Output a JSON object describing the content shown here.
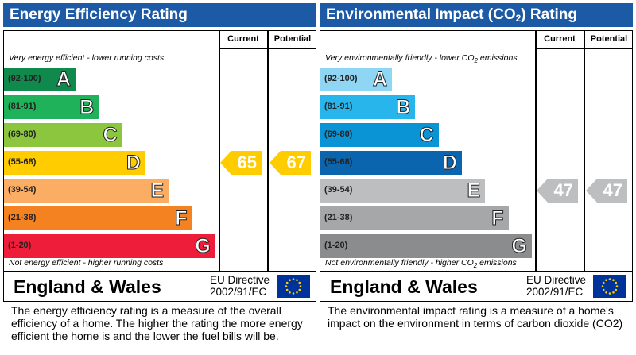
{
  "energy": {
    "title": "Energy Efficiency Rating",
    "col_current": "Current",
    "col_potential": "Potential",
    "note_top": "Very energy efficient - lower running costs",
    "note_bottom": "Not energy efficient - higher running costs",
    "bands": [
      {
        "range": "(92-100)",
        "letter": "A",
        "color": "#0f8a4c"
      },
      {
        "range": "(81-91)",
        "letter": "B",
        "color": "#1fb25a"
      },
      {
        "range": "(69-80)",
        "letter": "C",
        "color": "#8cc63f"
      },
      {
        "range": "(55-68)",
        "letter": "D",
        "color": "#ffcc00"
      },
      {
        "range": "(39-54)",
        "letter": "E",
        "color": "#fbae63"
      },
      {
        "range": "(21-38)",
        "letter": "F",
        "color": "#f58220"
      },
      {
        "range": "(1-20)",
        "letter": "G",
        "color": "#ee1d3a"
      }
    ],
    "current": {
      "value": "65",
      "band": "D",
      "color": "#ffcc00"
    },
    "potential": {
      "value": "67",
      "band": "D",
      "color": "#ffcc00"
    },
    "region": "England & Wales",
    "directive_line1": "EU Directive",
    "directive_line2": "2002/91/EC",
    "description": "The energy efficiency rating is a measure of the overall efficiency of a home.  The higher the rating the more energy efficient the home is and the lower the fuel bills will be."
  },
  "environment": {
    "title_pre": "Environmental Impact (CO",
    "title_sub": "2",
    "title_post": ") Rating",
    "col_current": "Current",
    "col_potential": "Potential",
    "note_top_pre": "Very environmentally friendly - lower CO",
    "note_top_sub": "2",
    "note_top_post": " emissions",
    "note_bottom_pre": "Not environmentally friendly - higher CO",
    "note_bottom_sub": "2",
    "note_bottom_post": " emissions",
    "bands": [
      {
        "range": "(92-100)",
        "letter": "A",
        "color": "#8fd6f4"
      },
      {
        "range": "(81-91)",
        "letter": "B",
        "color": "#27b5ec"
      },
      {
        "range": "(69-80)",
        "letter": "C",
        "color": "#0a94d5"
      },
      {
        "range": "(55-68)",
        "letter": "D",
        "color": "#0a65ae"
      },
      {
        "range": "(39-54)",
        "letter": "E",
        "color": "#bcbec0"
      },
      {
        "range": "(21-38)",
        "letter": "F",
        "color": "#a5a7a9"
      },
      {
        "range": "(1-20)",
        "letter": "G",
        "color": "#8a8c8e"
      }
    ],
    "current": {
      "value": "47",
      "band": "E",
      "color": "#bcbec0"
    },
    "potential": {
      "value": "47",
      "band": "E",
      "color": "#bcbec0"
    },
    "region": "England & Wales",
    "directive_line1": "EU Directive",
    "directive_line2": "2002/91/EC",
    "description": "The environmental impact rating is a measure of a home's impact on the environment in terms of carbon dioxide (CO2)"
  },
  "eu_flag_colors": {
    "field": "#003399",
    "stars": "#ffcc00"
  }
}
